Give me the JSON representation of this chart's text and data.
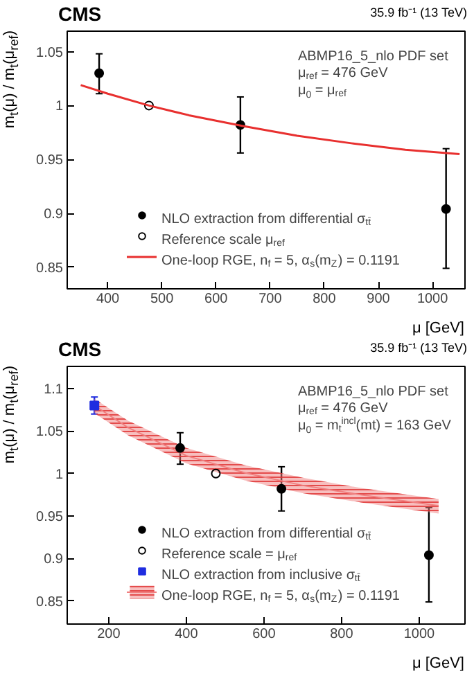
{
  "chart_data": [
    {
      "type": "scatter",
      "title": "CMS",
      "subtitle": "35.9 fb⁻¹ (13 TeV)",
      "xlabel": "μ [GeV]",
      "ylabel": "m$_{t}$(μ) / m$_{t}$(μ$_{ref}$)",
      "xlim": [
        325,
        1060
      ],
      "ylim": [
        0.83,
        1.069
      ],
      "xticks": [
        400,
        500,
        600,
        700,
        800,
        900,
        1000
      ],
      "yticks": [
        0.85,
        0.9,
        0.95,
        1,
        1.05
      ],
      "grid": false,
      "legend": "bottom left",
      "annotations": [
        "ABMP16_5_nlo PDF set",
        "μ$_{ref}$ = 476 GeV",
        "μ$_{0}$ = μ$_{ref}$"
      ],
      "series": [
        {
          "name": "NLO extraction from differential σ$_{tt̄}$",
          "marker": "circle",
          "color": "#000000",
          "x": [
            384,
            645,
            1025
          ],
          "values": [
            1.03,
            0.982,
            0.904
          ],
          "errors": [
            [
              1.011,
              1.048
            ],
            [
              0.956,
              1.008
            ],
            [
              0.849,
              0.96
            ]
          ]
        },
        {
          "name": "Reference scale μ$_{ref}$",
          "marker": "circle",
          "color": "#000000",
          "x": [
            476
          ],
          "values": [
            1.0
          ]
        },
        {
          "name": "One-loop RGE, n$_{f}$ = 5, α$_{s}$(m$_{Z}$) = 0.1191",
          "type": "line",
          "color": "#e8302f",
          "x": [
            350,
            400,
            476,
            550,
            650,
            750,
            850,
            950,
            1050
          ],
          "values": [
            1.019,
            1.011,
            1.0,
            0.991,
            0.981,
            0.972,
            0.965,
            0.959,
            0.955
          ]
        }
      ]
    },
    {
      "type": "scatter",
      "title": "CMS",
      "subtitle": "35.9 fb⁻¹ (13 TeV)",
      "xlabel": "μ [GeV]",
      "ylabel": "m$_{t}$(μ) / m$_{t}$(μ$_{ref}$)",
      "xlim": [
        93,
        1118
      ],
      "ylim": [
        0.823,
        1.126
      ],
      "xticks": [
        200,
        400,
        600,
        800,
        1000
      ],
      "yticks": [
        0.85,
        0.9,
        0.95,
        1,
        1.05,
        1.1
      ],
      "grid": false,
      "legend": "bottom left",
      "annotations": [
        "ABMP16_5_nlo PDF set",
        "μ$_{ref}$ = 476 GeV",
        "μ$_{0}$ = m$_{t}$$^{incl}$(mt) = 163 GeV"
      ],
      "series": [
        {
          "name": "NLO extraction from differential σ$_{tt̄}$",
          "marker": "circle",
          "color": "#000000",
          "x": [
            384,
            645,
            1025
          ],
          "values": [
            1.03,
            0.982,
            0.904
          ],
          "errors": [
            [
              1.011,
              1.048
            ],
            [
              0.956,
              1.008
            ],
            [
              0.849,
              0.96
            ]
          ]
        },
        {
          "name": "Reference scale = μ$_{ref}$",
          "marker": "circle",
          "color": "#000000",
          "x": [
            476
          ],
          "values": [
            1.0
          ]
        },
        {
          "name": "NLO extraction from inclusive σ$_{tt̄}$",
          "marker": "square",
          "color": "#1f2de0",
          "x": [
            163
          ],
          "values": [
            1.08
          ],
          "errors": [
            [
              1.07,
              1.09
            ]
          ]
        },
        {
          "name": "One-loop RGE, n$_{f}$ = 5, α$_{s}$(m$_{Z}$) = 0.1191",
          "type": "line",
          "color": "#f08080",
          "x": [
            163,
            250,
            400,
            550,
            700,
            850,
            1050
          ],
          "values": [
            1.08,
            1.054,
            1.021,
            1.001,
            0.986,
            0.975,
            0.962
          ],
          "lower": [
            1.071,
            1.045,
            1.012,
            0.992,
            0.977,
            0.966,
            0.953
          ],
          "upper": [
            1.088,
            1.062,
            1.03,
            1.01,
            0.995,
            0.983,
            0.97
          ]
        }
      ]
    }
  ]
}
